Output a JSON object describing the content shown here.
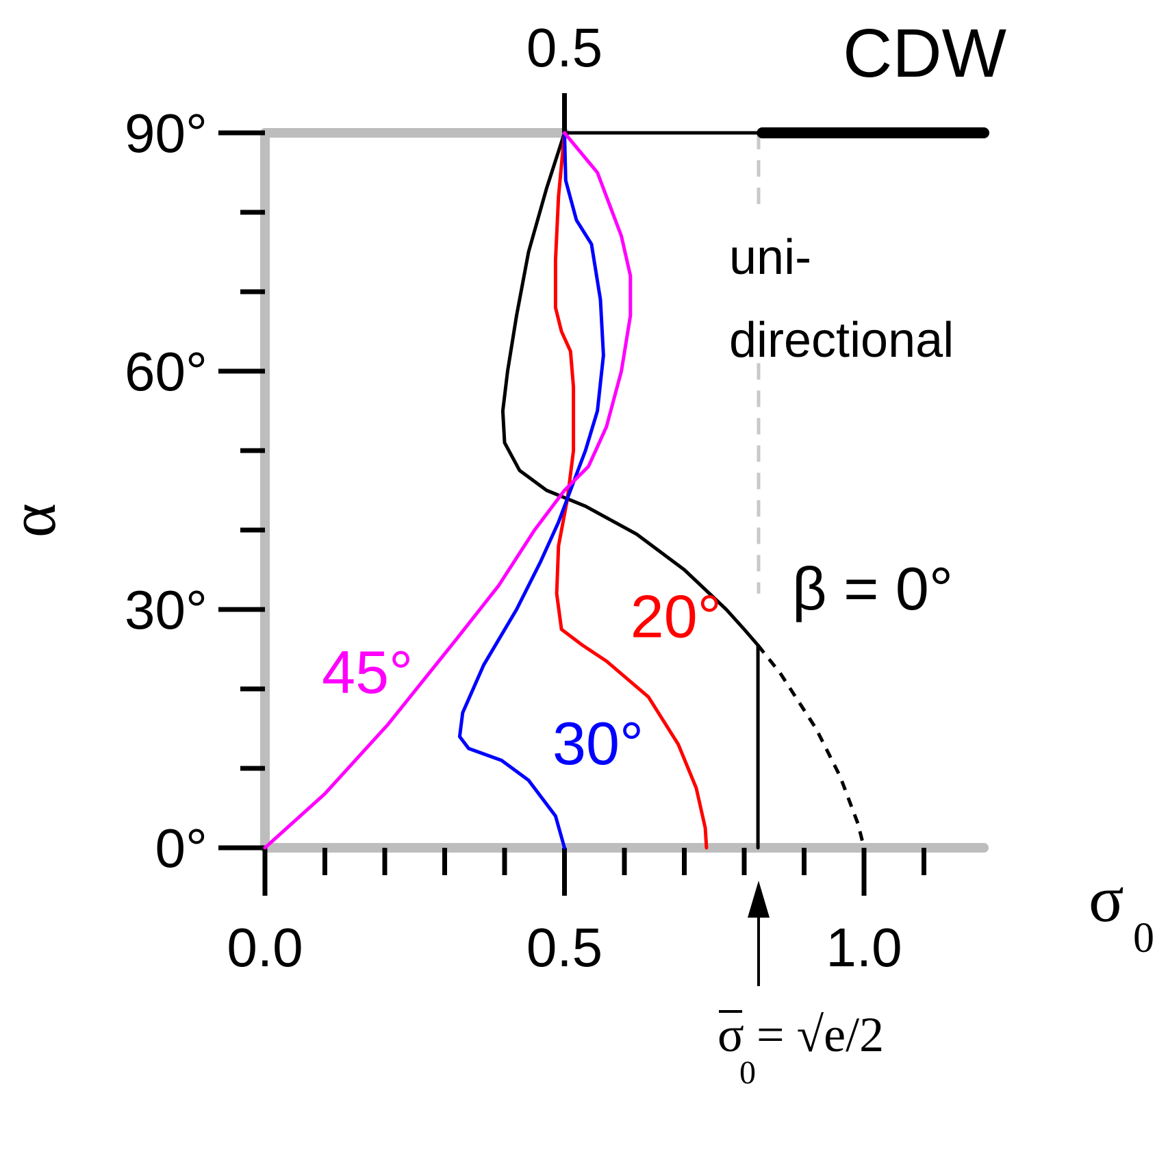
{
  "chart_data": {
    "type": "line",
    "title": "CDW",
    "xlabel": "σ",
    "xlabel_sub": "0",
    "ylabel": "α",
    "xlim": [
      0,
      1.2
    ],
    "ylim": [
      0,
      90
    ],
    "x_ticks": [
      "0.0",
      "0.5",
      "1.0"
    ],
    "x_top_tick": "0.5",
    "y_ticks": [
      "0°",
      "30°",
      "60°",
      "90°"
    ],
    "region_label": [
      "uni-",
      "directional"
    ],
    "sigma_bar": {
      "value": 0.824,
      "pre": "σ",
      "sub": "0",
      "post": " = √e/2"
    },
    "colors": {
      "beta0": "#000000",
      "beta20": "#ff0000",
      "beta30": "#0000ff",
      "beta45": "#ff00ff",
      "boundary": "#bdbdbd",
      "marker": "#c8c8c8"
    },
    "series": [
      {
        "name": "β = 0°",
        "color": "#000000",
        "points": [
          [
            0.5,
            90
          ],
          [
            0.47,
            83
          ],
          [
            0.44,
            75
          ],
          [
            0.42,
            67
          ],
          [
            0.405,
            60
          ],
          [
            0.397,
            55
          ],
          [
            0.4,
            51
          ],
          [
            0.425,
            47.5
          ],
          [
            0.47,
            45
          ],
          [
            0.535,
            43
          ],
          [
            0.62,
            39.5
          ],
          [
            0.7,
            35
          ],
          [
            0.77,
            30
          ],
          [
            0.8,
            27.5
          ],
          [
            0.823,
            25.5
          ],
          [
            0.823,
            0
          ]
        ],
        "dashed_branch": [
          [
            0.823,
            25.5
          ],
          [
            0.86,
            22
          ],
          [
            0.92,
            15
          ],
          [
            0.96,
            9
          ],
          [
            0.99,
            3
          ],
          [
            1.0,
            0
          ]
        ],
        "top_segment": [
          [
            0.5,
            90
          ],
          [
            0.823,
            90
          ]
        ],
        "top_thick_segment": [
          [
            0.83,
            90
          ],
          [
            1.2,
            90
          ]
        ]
      },
      {
        "name": "20°",
        "color": "#ff0000",
        "points": [
          [
            0.5,
            90
          ],
          [
            0.49,
            82
          ],
          [
            0.485,
            74
          ],
          [
            0.485,
            68
          ],
          [
            0.495,
            65
          ],
          [
            0.51,
            62.5
          ],
          [
            0.515,
            58
          ],
          [
            0.515,
            50
          ],
          [
            0.505,
            44
          ],
          [
            0.49,
            38
          ],
          [
            0.487,
            32
          ],
          [
            0.495,
            27.5
          ],
          [
            0.53,
            25.5
          ],
          [
            0.57,
            23.5
          ],
          [
            0.64,
            19
          ],
          [
            0.69,
            13
          ],
          [
            0.72,
            7.5
          ],
          [
            0.735,
            2.5
          ],
          [
            0.737,
            0
          ]
        ]
      },
      {
        "name": "30°",
        "color": "#0000ff",
        "points": [
          [
            0.5,
            90
          ],
          [
            0.502,
            84
          ],
          [
            0.52,
            79
          ],
          [
            0.545,
            76
          ],
          [
            0.56,
            69
          ],
          [
            0.565,
            62
          ],
          [
            0.555,
            55
          ],
          [
            0.535,
            50
          ],
          [
            0.515,
            46
          ],
          [
            0.49,
            41
          ],
          [
            0.46,
            36
          ],
          [
            0.42,
            30
          ],
          [
            0.365,
            23
          ],
          [
            0.33,
            17
          ],
          [
            0.325,
            14
          ],
          [
            0.34,
            12.5
          ],
          [
            0.395,
            11
          ],
          [
            0.44,
            8.5
          ],
          [
            0.485,
            4
          ],
          [
            0.5,
            0
          ]
        ]
      },
      {
        "name": "45°",
        "color": "#ff00ff",
        "points": [
          [
            0.5,
            90
          ],
          [
            0.555,
            85
          ],
          [
            0.595,
            77
          ],
          [
            0.61,
            72
          ],
          [
            0.61,
            67
          ],
          [
            0.595,
            60
          ],
          [
            0.57,
            53
          ],
          [
            0.54,
            48
          ],
          [
            0.5,
            45
          ],
          [
            0.45,
            40
          ],
          [
            0.39,
            33
          ],
          [
            0.32,
            26.3
          ],
          [
            0.205,
            15.5
          ],
          [
            0.1,
            6.8
          ],
          [
            0,
            0
          ]
        ]
      }
    ],
    "labels": [
      {
        "text": "β = 0°",
        "color": "#000000",
        "x": 0.88,
        "y": 30
      },
      {
        "text": "20°",
        "color": "#ff0000",
        "x": 0.61,
        "y": 26.5
      },
      {
        "text": "30°",
        "color": "#0000ff",
        "x": 0.48,
        "y": 10.5
      },
      {
        "text": "45°",
        "color": "#ff00ff",
        "x": 0.095,
        "y": 19.5
      }
    ]
  }
}
